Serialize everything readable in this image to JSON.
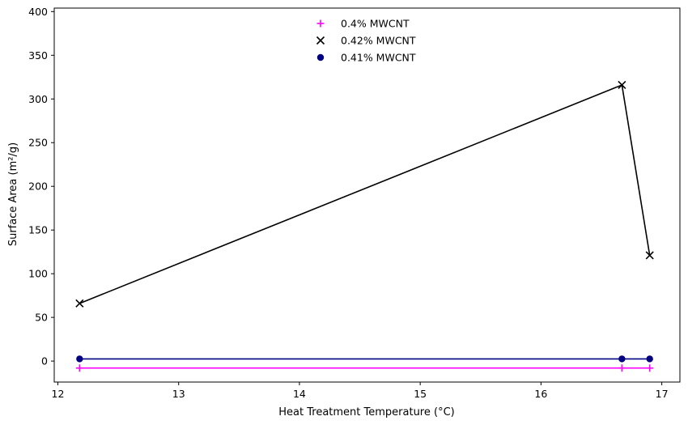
{
  "chart_data": {
    "type": "line",
    "title": "",
    "xlabel": "Heat Treatment Temperature (°C)",
    "ylabel": "Surface Area (m²/g)",
    "xlim": [
      11.97,
      17.15
    ],
    "ylim": [
      -24,
      404
    ],
    "xticks": [
      12,
      13,
      14,
      15,
      16,
      17
    ],
    "yticks": [
      0,
      50,
      100,
      150,
      200,
      250,
      300,
      350,
      400
    ],
    "grid": false,
    "legend_position": "top-center",
    "series": [
      {
        "name": "0.4% MWCNT",
        "marker": "plus",
        "color": "#ff00ff",
        "x": [
          12.18,
          16.67,
          16.9
        ],
        "y": [
          -8,
          -8,
          -8
        ]
      },
      {
        "name": "0.42% MWCNT",
        "marker": "x",
        "color": "#000000",
        "x": [
          12.18,
          16.67,
          16.9
        ],
        "y": [
          66,
          316,
          121
        ]
      },
      {
        "name": "0.41% MWCNT",
        "marker": "circle",
        "color": "#000080",
        "x": [
          12.18,
          16.67,
          16.9
        ],
        "y": [
          2.5,
          2.5,
          2.5
        ]
      }
    ]
  }
}
